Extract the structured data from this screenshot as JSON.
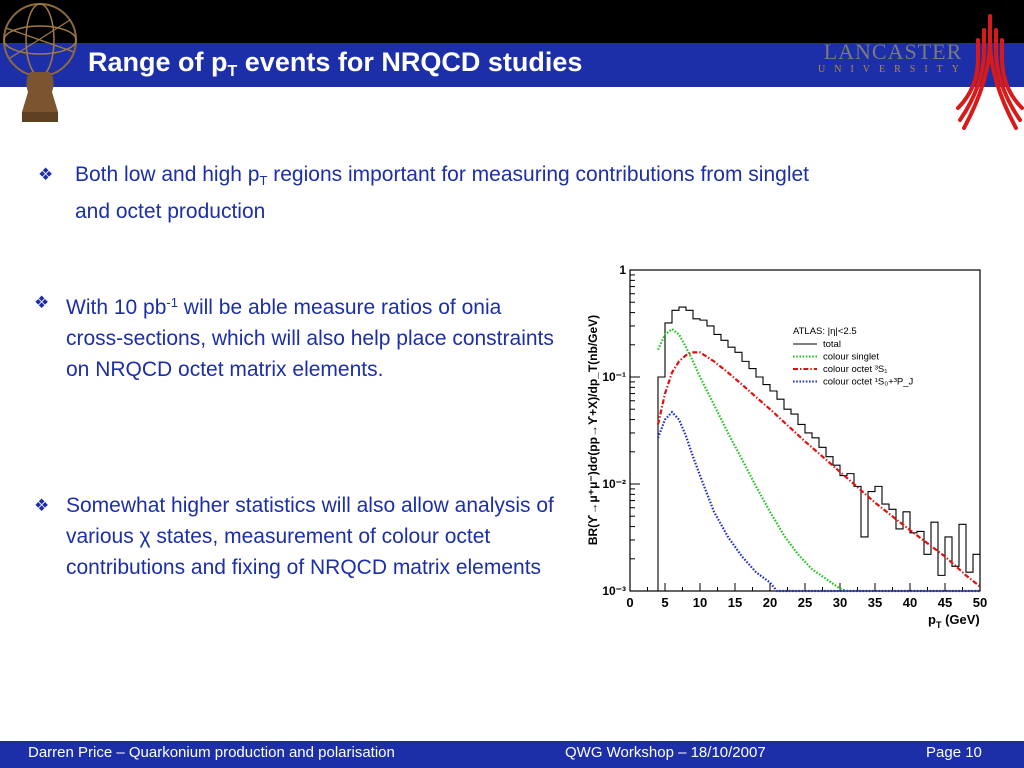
{
  "slide": {
    "title_main": "Range of p",
    "title_sub": "T",
    "title_rest": " events for NRQCD studies"
  },
  "logos": {
    "atlas": "atlas-figure-logo",
    "lancaster_name": "LANCASTER",
    "lancaster_sub": "UNIVERSITY"
  },
  "bullets": [
    {
      "icon": "diamond-bullet-icon",
      "text_a": "Both low and high p",
      "sub": "T",
      "text_b": " regions important for measuring contributions from singlet and octet production"
    },
    {
      "icon": "diamond-bullet-icon",
      "text_a": "With 10 pb",
      "sup": "-1",
      "text_b": " will be able measure ratios of onia cross-sections, which will also help place constraints on NRQCD octet matrix elements."
    },
    {
      "icon": "diamond-bullet-icon",
      "text_a": "Somewhat higher statistics will also allow analysis of various ",
      "symbol": "χ",
      "text_b": " states, measurement of colour octet contributions and fixing of NRQCD matrix elements"
    }
  ],
  "footer": {
    "left": "Darren Price – Quarkonium production and polarisation",
    "center": "QWG Workshop – 18/10/2007",
    "right": "Page 10"
  },
  "chart_data": {
    "type": "line",
    "yscale": "log",
    "xlabel_main": "p",
    "xlabel_sub": "T",
    "xlabel_unit": " (GeV)",
    "ylabel": "BR(ϒ→μ⁺μ⁻)dσ(pp→ϒ+X)/dp_T(nb/GeV)",
    "xlim": [
      0,
      50
    ],
    "ylim": [
      0.001,
      1
    ],
    "xticks": [
      "0",
      "5",
      "10",
      "15",
      "20",
      "25",
      "30",
      "35",
      "40",
      "45",
      "50"
    ],
    "yticks": [
      "10⁻³",
      "10⁻²",
      "10⁻¹",
      "1"
    ],
    "legend_title": "ATLAS:   |η|<2.5",
    "legend_position": "top-right",
    "series": [
      {
        "name": "total",
        "style": "step",
        "color": "#000000",
        "x": [
          3,
          4,
          5,
          6,
          7,
          8,
          9,
          10,
          11,
          12,
          13,
          14,
          15,
          16,
          17,
          18,
          19,
          20,
          21,
          22,
          23,
          24,
          25,
          26,
          27,
          28,
          29,
          30,
          31,
          32,
          33,
          34,
          35,
          36,
          37,
          38,
          39,
          40,
          41,
          42,
          43,
          44,
          45,
          46,
          47,
          48,
          49,
          50
        ],
        "values": [
          0.001,
          0.1,
          0.32,
          0.42,
          0.45,
          0.42,
          0.35,
          0.34,
          0.3,
          0.25,
          0.22,
          0.19,
          0.17,
          0.14,
          0.12,
          0.1,
          0.085,
          0.074,
          0.062,
          0.05,
          0.045,
          0.036,
          0.03,
          0.027,
          0.022,
          0.018,
          0.015,
          0.012,
          0.0125,
          0.0095,
          0.0032,
          0.0085,
          0.0095,
          0.0065,
          0.0058,
          0.0038,
          0.0055,
          0.0035,
          0.0036,
          0.0022,
          0.0044,
          0.0014,
          0.0032,
          0.0017,
          0.0042,
          0.0015,
          0.0022,
          0.001
        ]
      },
      {
        "name": "colour singlet",
        "style": "dotted",
        "color": "#22c422",
        "x": [
          4,
          5,
          6,
          7,
          8,
          9,
          10,
          12,
          14,
          16,
          18,
          20,
          22,
          24,
          26,
          28,
          30,
          31
        ],
        "values": [
          0.18,
          0.25,
          0.28,
          0.25,
          0.19,
          0.14,
          0.1,
          0.055,
          0.03,
          0.017,
          0.0095,
          0.0055,
          0.0033,
          0.0022,
          0.0016,
          0.0013,
          0.00105,
          0.001
        ]
      },
      {
        "name": "colour octet ³S₁",
        "style": "dashdot",
        "color": "#e01010",
        "x": [
          4,
          5,
          6,
          7,
          8,
          9,
          10,
          12,
          14,
          16,
          18,
          20,
          25,
          30,
          35,
          40,
          45,
          48,
          50
        ],
        "values": [
          0.036,
          0.07,
          0.11,
          0.14,
          0.16,
          0.17,
          0.17,
          0.14,
          0.11,
          0.085,
          0.065,
          0.05,
          0.025,
          0.013,
          0.0067,
          0.0037,
          0.0021,
          0.0014,
          0.0011
        ]
      },
      {
        "name": "colour octet ¹S₀+³P_J",
        "style": "dotted",
        "color": "#2030d0",
        "x": [
          4,
          5,
          6,
          7,
          8,
          9,
          10,
          12,
          14,
          16,
          18,
          20,
          21,
          22,
          50
        ],
        "values": [
          0.027,
          0.04,
          0.047,
          0.04,
          0.028,
          0.018,
          0.012,
          0.0055,
          0.0032,
          0.0021,
          0.0015,
          0.0012,
          0.001,
          0.001,
          0.001
        ]
      }
    ]
  }
}
